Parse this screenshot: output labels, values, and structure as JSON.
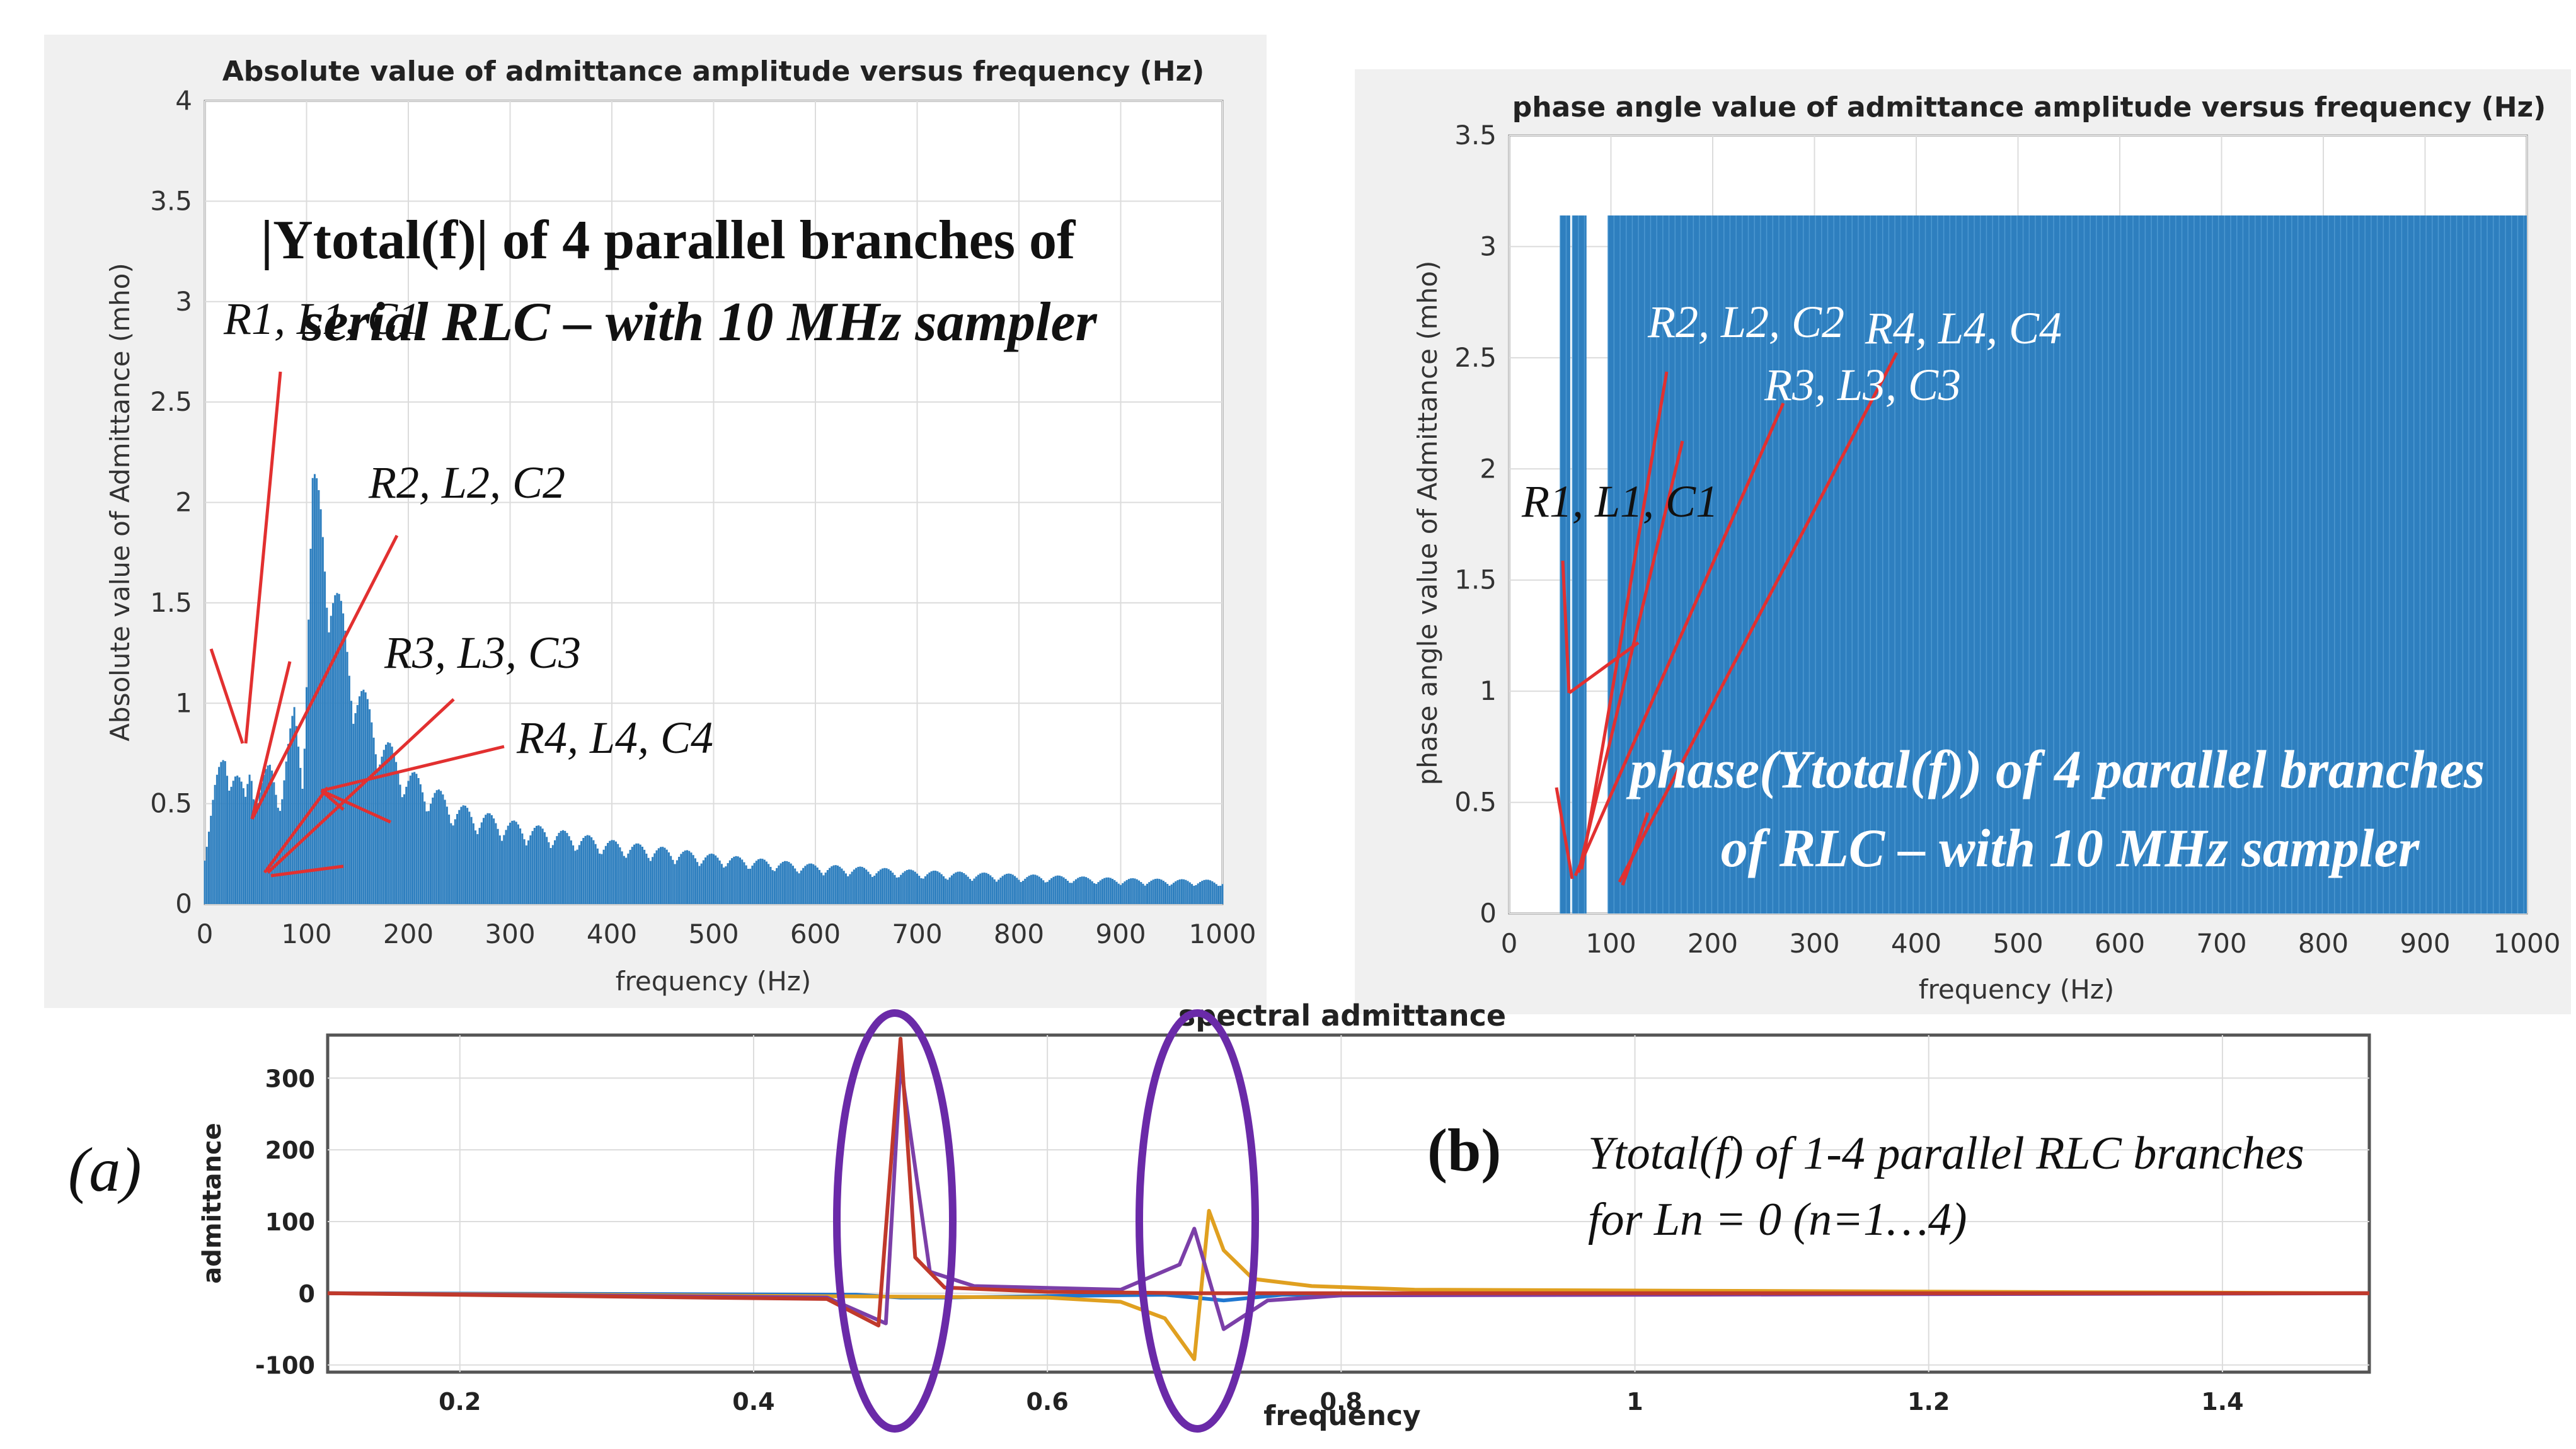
{
  "colors": {
    "bar": "#2e7fbf",
    "arrow": "#e23030",
    "ellipse": "#6a2aa8",
    "blue": "#1f77d0",
    "red": "#c0392b",
    "orange": "#e0a020",
    "purple": "#7b3fa8"
  },
  "chart_data": [
    {
      "type": "bar",
      "title": "Absolute value of admittance amplitude versus frequency (Hz)",
      "xlabel": "frequency (Hz)",
      "ylabel": "Absolute value of Admittance (mho)",
      "xlim": [
        0,
        1000
      ],
      "ylim": [
        0,
        4
      ],
      "xticks": [
        "0",
        "100",
        "200",
        "300",
        "400",
        "500",
        "600",
        "700",
        "800",
        "900",
        "1000"
      ],
      "yticks": [
        "0",
        "0.5",
        "1",
        "1.5",
        "2",
        "2.5",
        "3",
        "3.5",
        "4"
      ],
      "grid": true,
      "envelope": [
        {
          "x": 0,
          "y": 0.3
        },
        {
          "x": 10,
          "y": 0.6
        },
        {
          "x": 20,
          "y": 0.82
        },
        {
          "x": 30,
          "y": 0.7
        },
        {
          "x": 40,
          "y": 0.55
        },
        {
          "x": 45,
          "y": 0.78
        },
        {
          "x": 52,
          "y": 0.6
        },
        {
          "x": 65,
          "y": 0.72
        },
        {
          "x": 75,
          "y": 0.6
        },
        {
          "x": 88,
          "y": 1.0
        },
        {
          "x": 96,
          "y": 0.75
        },
        {
          "x": 106,
          "y": 2.18
        },
        {
          "x": 115,
          "y": 2.05
        },
        {
          "x": 130,
          "y": 1.6
        },
        {
          "x": 150,
          "y": 1.15
        },
        {
          "x": 175,
          "y": 0.85
        },
        {
          "x": 200,
          "y": 0.68
        },
        {
          "x": 250,
          "y": 0.5
        },
        {
          "x": 300,
          "y": 0.42
        },
        {
          "x": 400,
          "y": 0.32
        },
        {
          "x": 500,
          "y": 0.25
        },
        {
          "x": 600,
          "y": 0.2
        },
        {
          "x": 700,
          "y": 0.17
        },
        {
          "x": 800,
          "y": 0.15
        },
        {
          "x": 900,
          "y": 0.13
        },
        {
          "x": 1000,
          "y": 0.12
        }
      ],
      "annotation_title_line1": "|Ytotal(f)| of 4 parallel branches of",
      "annotation_title_line2": "serial RLC – with 10 MHz sampler",
      "branch_labels": [
        "R1, L1, C1",
        "R2, L2, C2",
        "R3, L3, C3",
        "R4, L4, C4"
      ]
    },
    {
      "type": "bar",
      "title": "phase angle value of admittance amplitude versus frequency (Hz)",
      "xlabel": "frequency (Hz)",
      "ylabel": "phase angle value of Admittance (mho)",
      "xlim": [
        0,
        1000
      ],
      "ylim": [
        0,
        3.5
      ],
      "xticks": [
        "0",
        "100",
        "200",
        "300",
        "400",
        "500",
        "600",
        "700",
        "800",
        "900",
        "1000"
      ],
      "yticks": [
        "0",
        "0.5",
        "1",
        "1.5",
        "2",
        "2.5",
        "3",
        "3.5"
      ],
      "grid": true,
      "filled_bands": [
        {
          "x_from": 50,
          "x_to": 60,
          "y": 3.14
        },
        {
          "x_from": 62,
          "x_to": 76,
          "y": 3.14
        },
        {
          "x_from": 97,
          "x_to": 1000,
          "y": 3.14
        }
      ],
      "annotation_title_line1": "phase(Ytotal(f)) of 4 parallel branches",
      "annotation_title_line2": "of RLC – with 10 MHz sampler",
      "branch_labels": [
        "R1, L1, C1",
        "R2, L2, C2",
        "R3, L3, C3",
        "R4, L4, C4"
      ]
    },
    {
      "type": "line",
      "title": "spectral admittance",
      "xlabel": "frequency",
      "ylabel": "admittance",
      "xlim": [
        0.11,
        1.5
      ],
      "ylim": [
        -110,
        360
      ],
      "xticks": [
        "0.2",
        "0.4",
        "0.6",
        "0.8",
        "1",
        "1.2",
        "1.4"
      ],
      "yticks": [
        "-100",
        "0",
        "100",
        "200",
        "300"
      ],
      "grid": true,
      "series": [
        {
          "name": "blue",
          "x": [
            0.11,
            0.47,
            0.5,
            0.53,
            0.6,
            0.68,
            0.72,
            0.76,
            1.5
          ],
          "y": [
            0,
            -2,
            -6,
            -6,
            -4,
            -2,
            -10,
            -2,
            0
          ]
        },
        {
          "name": "red",
          "x": [
            0.11,
            0.45,
            0.485,
            0.5,
            0.51,
            0.53,
            0.6,
            0.7,
            0.75,
            1.5
          ],
          "y": [
            0,
            -8,
            -45,
            355,
            50,
            8,
            2,
            0,
            0,
            0
          ]
        },
        {
          "name": "orange",
          "x": [
            0.11,
            0.6,
            0.65,
            0.68,
            0.7,
            0.71,
            0.72,
            0.74,
            0.78,
            0.85,
            1.5
          ],
          "y": [
            0,
            -6,
            -12,
            -35,
            -92,
            115,
            60,
            20,
            10,
            5,
            0
          ]
        },
        {
          "name": "purple",
          "x": [
            0.11,
            0.45,
            0.49,
            0.5,
            0.52,
            0.55,
            0.65,
            0.69,
            0.7,
            0.72,
            0.75,
            0.8,
            1.5
          ],
          "y": [
            0,
            -6,
            -42,
            320,
            30,
            10,
            5,
            40,
            90,
            -50,
            -10,
            -3,
            0
          ]
        }
      ],
      "label_a": "(a)",
      "label_b": "(b)",
      "annotation_line1": "Ytotal(f) of 1-4 parallel RLC branches",
      "annotation_line2": "for Ln = 0 (n=1…4)"
    }
  ]
}
